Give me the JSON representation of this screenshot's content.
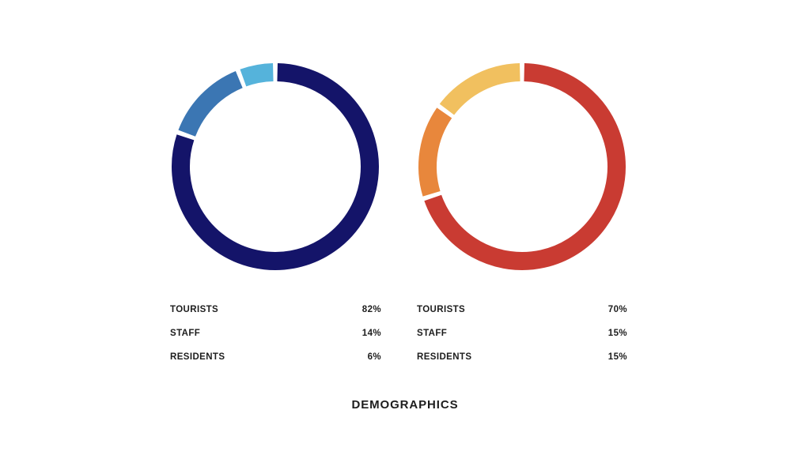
{
  "page": {
    "background": "#ffffff",
    "text_color": "#1d1d1d",
    "title": "DEMOGRAPHICS"
  },
  "chart_data": [
    {
      "type": "pie",
      "subtype": "donut",
      "title": "",
      "categories": [
        "TOURISTS",
        "STAFF",
        "RESIDENTS"
      ],
      "values": [
        82,
        14,
        6
      ],
      "unit": "%",
      "start_angle_deg": 0,
      "direction": "clockwise",
      "colors": [
        "#141469",
        "#3b76b3",
        "#55b3db"
      ],
      "legend_position": "below",
      "legend": [
        {
          "label": "TOURISTS",
          "value": "82%"
        },
        {
          "label": "STAFF",
          "value": "14%"
        },
        {
          "label": "RESIDENTS",
          "value": "6%"
        }
      ]
    },
    {
      "type": "pie",
      "subtype": "donut",
      "title": "",
      "categories": [
        "TOURISTS",
        "STAFF",
        "RESIDENTS"
      ],
      "values": [
        70,
        15,
        15
      ],
      "unit": "%",
      "start_angle_deg": 0,
      "direction": "clockwise",
      "colors": [
        "#c93b32",
        "#e8873c",
        "#f1c05f"
      ],
      "legend_position": "below",
      "legend": [
        {
          "label": "TOURISTS",
          "value": "70%"
        },
        {
          "label": "STAFF",
          "value": "15%"
        },
        {
          "label": "RESIDENTS",
          "value": "15%"
        }
      ]
    }
  ]
}
